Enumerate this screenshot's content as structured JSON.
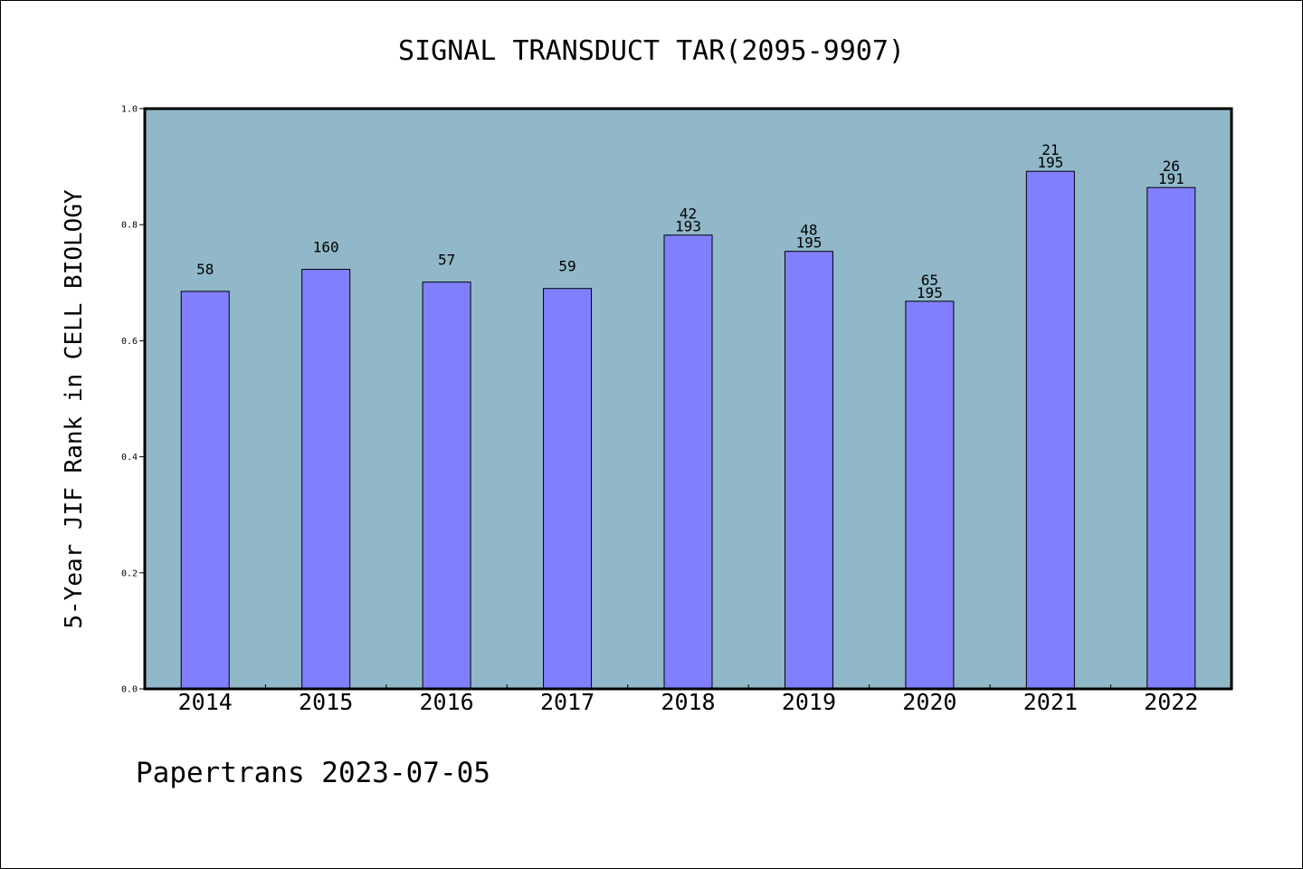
{
  "chart_data": {
    "type": "bar",
    "title": "SIGNAL TRANSDUCT TAR(2095-9907)",
    "xlabel": "",
    "ylabel": "5-Year JIF Rank in CELL BIOLOGY",
    "ylim": [
      0,
      1.0
    ],
    "yticks": [
      "0.0",
      "0.2",
      "0.4",
      "0.6",
      "0.8",
      "1.0"
    ],
    "grid": false,
    "colors": {
      "plot_background": "#90b8c8",
      "bar": "#8080ff",
      "bar_edge": "#000000"
    },
    "categories": [
      "2014",
      "2015",
      "2016",
      "2017",
      "2018",
      "2019",
      "2020",
      "2021",
      "2022"
    ],
    "values": [
      0.685,
      0.723,
      0.701,
      0.69,
      0.782,
      0.754,
      0.668,
      0.892,
      0.864
    ],
    "bar_labels": [
      {
        "rank": "58",
        "total": ""
      },
      {
        "rank": "160",
        "total": ""
      },
      {
        "rank": "57",
        "total": ""
      },
      {
        "rank": "59",
        "total": ""
      },
      {
        "rank": "42",
        "total": "193"
      },
      {
        "rank": "48",
        "total": "195"
      },
      {
        "rank": "65",
        "total": "195"
      },
      {
        "rank": "21",
        "total": "195"
      },
      {
        "rank": "26",
        "total": "191"
      }
    ]
  },
  "footer": "Papertrans 2023-07-05"
}
